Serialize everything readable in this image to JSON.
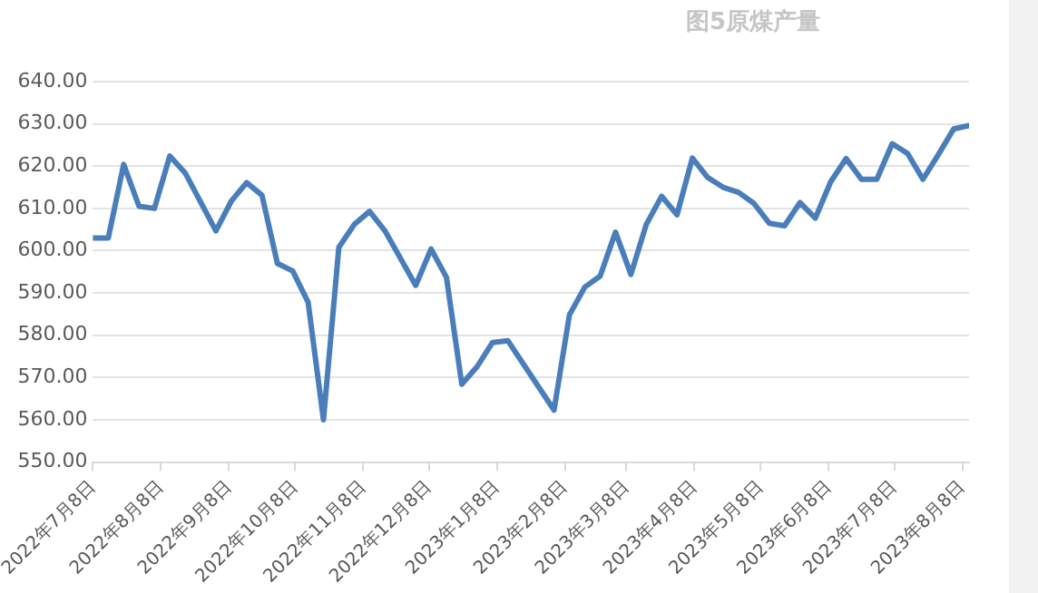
{
  "chart_data": {
    "type": "line",
    "title": "图5原煤产量",
    "x": [
      "2022-07-08",
      "2022-07-15",
      "2022-07-22",
      "2022-07-29",
      "2022-08-05",
      "2022-08-12",
      "2022-08-19",
      "2022-09-02",
      "2022-09-09",
      "2022-09-16",
      "2022-09-23",
      "2022-09-30",
      "2022-10-07",
      "2022-10-14",
      "2022-10-21",
      "2022-10-28",
      "2022-11-04",
      "2022-11-11",
      "2022-11-18",
      "2022-12-02",
      "2022-12-09",
      "2022-12-16",
      "2022-12-23",
      "2022-12-30",
      "2023-01-06",
      "2023-01-13",
      "2023-02-03",
      "2023-02-10",
      "2023-02-17",
      "2023-02-24",
      "2023-03-03",
      "2023-03-10",
      "2023-03-17",
      "2023-03-24",
      "2023-03-31",
      "2023-04-07",
      "2023-04-14",
      "2023-04-21",
      "2023-04-28",
      "2023-05-05",
      "2023-05-12",
      "2023-05-19",
      "2023-05-26",
      "2023-06-02",
      "2023-06-09",
      "2023-06-16",
      "2023-06-23",
      "2023-06-30",
      "2023-07-07",
      "2023-07-14",
      "2023-07-21",
      "2023-07-28",
      "2023-08-04",
      "2023-08-11"
    ],
    "series": [
      {
        "color": "#4a7ebb",
        "values": [
          603,
          603,
          620.4,
          610.5,
          610,
          622.4,
          618.4,
          604.7,
          611.7,
          616.1,
          613.1,
          597,
          595.2,
          587.8,
          560,
          600.8,
          606.2,
          609.3,
          604.7,
          591.8,
          600.4,
          593.7,
          568.4,
          572.6,
          578.3,
          578.7,
          562.3,
          584.8,
          591.4,
          594,
          604.4,
          594.4,
          606.2,
          612.9,
          608.5,
          621.9,
          617.3,
          615,
          613.8,
          611.2,
          606.5,
          605.9,
          611.4,
          607.7,
          616.3,
          621.8,
          616.9,
          616.9,
          625.3,
          623,
          616.9,
          622.7,
          628.8,
          629.6
        ]
      }
    ],
    "xlim": [
      "2022-07-08",
      "2023-08-11"
    ],
    "xticks": [
      {
        "value": "2022-07-08",
        "label": "2022年7月8日"
      },
      {
        "value": "2022-08-08",
        "label": "2022年8月8日"
      },
      {
        "value": "2022-09-08",
        "label": "2022年9月8日"
      },
      {
        "value": "2022-10-08",
        "label": "2022年10月8日"
      },
      {
        "value": "2022-11-08",
        "label": "2022年11月8日"
      },
      {
        "value": "2022-12-08",
        "label": "2022年12月8日"
      },
      {
        "value": "2023-01-08",
        "label": "2023年1月8日"
      },
      {
        "value": "2023-02-08",
        "label": "2023年2月8日"
      },
      {
        "value": "2023-03-08",
        "label": "2023年3月8日"
      },
      {
        "value": "2023-04-08",
        "label": "2023年4月8日"
      },
      {
        "value": "2023-05-08",
        "label": "2023年5月8日"
      },
      {
        "value": "2023-06-08",
        "label": "2023年6月8日"
      },
      {
        "value": "2023-07-08",
        "label": "2023年7月8日"
      },
      {
        "value": "2023-08-08",
        "label": "2023年8月8日"
      }
    ],
    "ylim": [
      550,
      640
    ],
    "yticks": [
      {
        "value": 550,
        "label": "550.00"
      },
      {
        "value": 560,
        "label": "560.00"
      },
      {
        "value": 570,
        "label": "570.00"
      },
      {
        "value": 580,
        "label": "580.00"
      },
      {
        "value": 590,
        "label": "590.00"
      },
      {
        "value": 600,
        "label": "600.00"
      },
      {
        "value": 610,
        "label": "610.00"
      },
      {
        "value": 620,
        "label": "620.00"
      },
      {
        "value": 630,
        "label": "630.00"
      },
      {
        "value": 640,
        "label": "640.00"
      }
    ],
    "grid": "y",
    "legend": false,
    "marker": "none",
    "line_style": "solid"
  }
}
